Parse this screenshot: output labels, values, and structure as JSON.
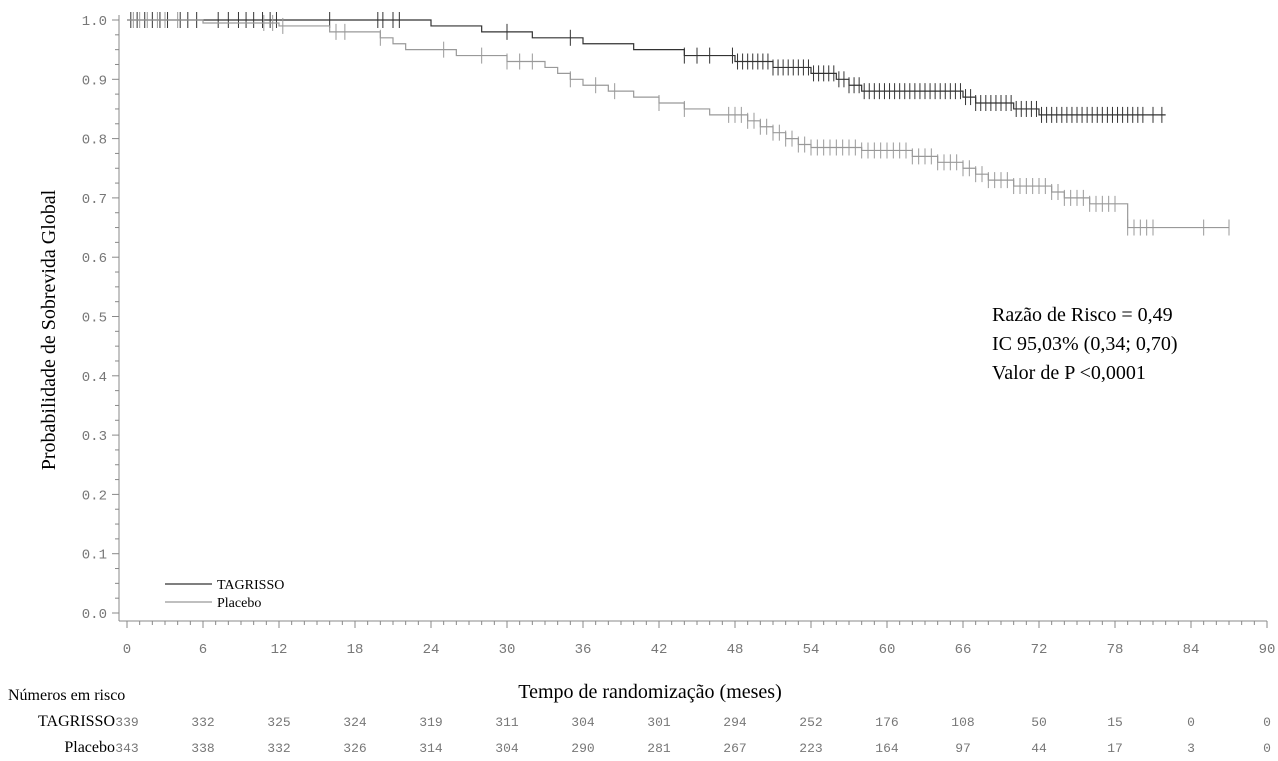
{
  "chart_data": {
    "type": "line",
    "title": "",
    "xlabel": "Tempo de randomização (meses)",
    "ylabel": "Probabilidade de Sobrevida Global",
    "xlim": [
      0,
      90
    ],
    "ylim": [
      0.0,
      1.0
    ],
    "xticks": [
      0,
      6,
      12,
      18,
      24,
      30,
      36,
      42,
      48,
      54,
      60,
      66,
      72,
      78,
      84,
      90
    ],
    "yticks": [
      "0.0",
      "0.1",
      "0.2",
      "0.3",
      "0.4",
      "0.5",
      "0.6",
      "0.7",
      "0.8",
      "0.9",
      "1.0"
    ],
    "grid": false,
    "legend_position": "bottom-left",
    "series": [
      {
        "name": "TAGRISSO",
        "color": "#333333",
        "step_points": [
          [
            0,
            1.0
          ],
          [
            22,
            1.0
          ],
          [
            24,
            0.99
          ],
          [
            28,
            0.98
          ],
          [
            32,
            0.97
          ],
          [
            36,
            0.96
          ],
          [
            40,
            0.95
          ],
          [
            44,
            0.94
          ],
          [
            48,
            0.93
          ],
          [
            51,
            0.92
          ],
          [
            54,
            0.91
          ],
          [
            56,
            0.9
          ],
          [
            57,
            0.89
          ],
          [
            58,
            0.88
          ],
          [
            66,
            0.87
          ],
          [
            67,
            0.86
          ],
          [
            70,
            0.85
          ],
          [
            72,
            0.84
          ],
          [
            82,
            0.84
          ]
        ],
        "censor_marks": [
          0.3,
          0.8,
          1.4,
          2.0,
          2.6,
          3.2,
          4.2,
          4.8,
          5.5,
          7.2,
          8.0,
          8.8,
          9.4,
          10.0,
          10.7,
          11.3,
          11.8,
          16.0,
          19.8,
          20.2,
          21.0,
          21.5,
          30.0,
          35.0,
          44.0,
          45.0,
          46.0,
          47.8,
          48.2,
          48.6,
          49.0,
          49.4,
          49.8,
          50.2,
          50.6,
          51.0,
          51.4,
          51.8,
          52.2,
          52.6,
          53.0,
          53.4,
          53.8,
          54.2,
          54.6,
          55.0,
          55.4,
          55.8,
          56.2,
          56.6,
          57.0,
          57.4,
          57.8,
          58.2,
          58.6,
          59.0,
          59.4,
          59.8,
          60.2,
          60.6,
          61.0,
          61.4,
          61.8,
          62.2,
          62.6,
          63.0,
          63.4,
          63.8,
          64.2,
          64.6,
          65.0,
          65.4,
          65.8,
          66.2,
          66.6,
          67.0,
          67.4,
          67.8,
          68.2,
          68.6,
          69.0,
          69.4,
          69.8,
          70.2,
          70.6,
          71.0,
          71.4,
          71.8,
          72.2,
          72.6,
          73.0,
          73.4,
          73.8,
          74.2,
          74.6,
          75.0,
          75.4,
          75.8,
          76.2,
          76.6,
          77.0,
          77.4,
          77.8,
          78.2,
          78.6,
          79.0,
          79.4,
          79.8,
          80.2,
          81.0,
          81.7
        ]
      },
      {
        "name": "Placebo",
        "color": "#999999",
        "step_points": [
          [
            0,
            1.0
          ],
          [
            5,
            1.0
          ],
          [
            6,
            0.995
          ],
          [
            12,
            0.99
          ],
          [
            16,
            0.98
          ],
          [
            20,
            0.97
          ],
          [
            21,
            0.96
          ],
          [
            22,
            0.95
          ],
          [
            26,
            0.94
          ],
          [
            30,
            0.93
          ],
          [
            33,
            0.92
          ],
          [
            34,
            0.91
          ],
          [
            35,
            0.9
          ],
          [
            36,
            0.89
          ],
          [
            38,
            0.88
          ],
          [
            40,
            0.87
          ],
          [
            42,
            0.86
          ],
          [
            44,
            0.85
          ],
          [
            46,
            0.84
          ],
          [
            49,
            0.83
          ],
          [
            50,
            0.82
          ],
          [
            51,
            0.81
          ],
          [
            52,
            0.8
          ],
          [
            53,
            0.79
          ],
          [
            54,
            0.785
          ],
          [
            58,
            0.78
          ],
          [
            62,
            0.77
          ],
          [
            64,
            0.76
          ],
          [
            66,
            0.75
          ],
          [
            67,
            0.74
          ],
          [
            68,
            0.73
          ],
          [
            70,
            0.72
          ],
          [
            73,
            0.71
          ],
          [
            74,
            0.7
          ],
          [
            76,
            0.69
          ],
          [
            79,
            0.65
          ],
          [
            87,
            0.65
          ]
        ],
        "censor_marks": [
          0.5,
          1.0,
          1.6,
          2.4,
          3.0,
          4.0,
          10.8,
          11.5,
          12.3,
          16.5,
          17.2,
          20.0,
          25.0,
          28.0,
          30.0,
          31.0,
          32.0,
          35.0,
          37.0,
          38.5,
          42.0,
          44.0,
          47.5,
          48.0,
          48.5,
          49.0,
          49.5,
          50.0,
          50.5,
          51.0,
          51.5,
          52.0,
          52.5,
          53.0,
          53.5,
          54.0,
          54.5,
          55.0,
          55.5,
          56.0,
          56.5,
          57.0,
          57.5,
          58.0,
          58.5,
          59.0,
          59.5,
          60.0,
          60.5,
          61.0,
          61.5,
          62.0,
          62.5,
          63.0,
          63.5,
          64.0,
          64.5,
          65.0,
          65.5,
          66.0,
          66.5,
          67.0,
          67.5,
          68.0,
          68.5,
          69.0,
          69.5,
          70.0,
          70.5,
          71.0,
          71.5,
          72.0,
          72.5,
          73.0,
          73.5,
          74.0,
          74.5,
          75.0,
          75.5,
          76.0,
          76.5,
          77.0,
          77.5,
          78.0,
          79.0,
          79.5,
          80.0,
          80.5,
          81.0,
          85.0,
          87.0
        ]
      }
    ],
    "annotations": [
      "Razão de Risco = 0,49",
      "IC 95,03% (0,34; 0,70)",
      "Valor de P <0,0001"
    ],
    "risk_table": {
      "title": "Números em risco",
      "rows": [
        {
          "label": "TAGRISSO",
          "values": [
            "339",
            "332",
            "325",
            "324",
            "319",
            "311",
            "304",
            "301",
            "294",
            "252",
            "176",
            "108",
            "50",
            "15",
            "0",
            "0"
          ]
        },
        {
          "label": "Placebo",
          "values": [
            "343",
            "338",
            "332",
            "326",
            "314",
            "304",
            "290",
            "281",
            "267",
            "223",
            "164",
            "97",
            "44",
            "17",
            "3",
            "0"
          ]
        }
      ]
    }
  }
}
